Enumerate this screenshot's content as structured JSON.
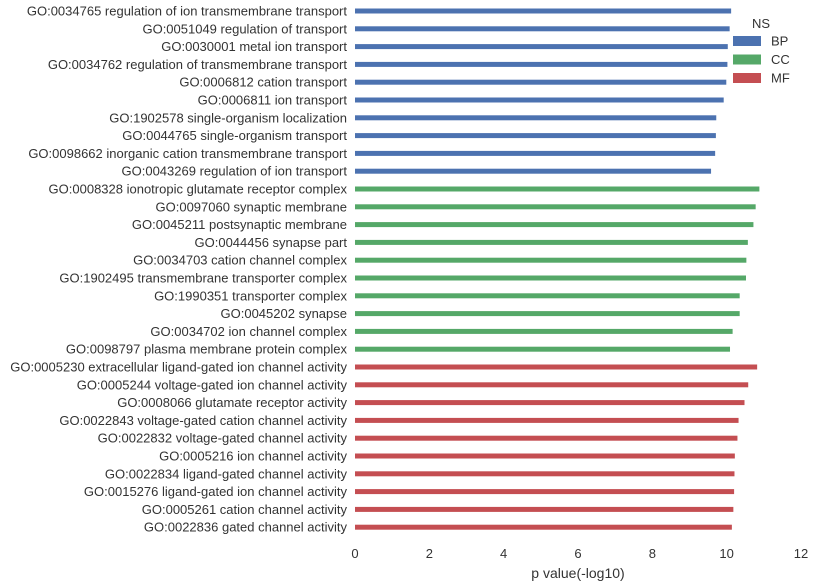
{
  "chart_data": {
    "type": "bar",
    "orientation": "horizontal",
    "xlabel": "p value(-log10)",
    "ylabel": "",
    "title": "",
    "xlim": [
      0,
      12
    ],
    "xticks": [
      0,
      2,
      4,
      6,
      8,
      10,
      12
    ],
    "grid": false,
    "legend": {
      "title": "NS",
      "placement": "top-right",
      "entries": [
        {
          "name": "BP",
          "color": "#4c72b0"
        },
        {
          "name": "CC",
          "color": "#55a868"
        },
        {
          "name": "MF",
          "color": "#c44e52"
        }
      ]
    },
    "categories": [
      "GO:0034765 regulation of ion transmembrane transport",
      "GO:0051049 regulation of transport",
      "GO:0030001 metal ion transport",
      "GO:0034762 regulation of transmembrane transport",
      "GO:0006812 cation transport",
      "GO:0006811 ion transport",
      "GO:1902578 single-organism localization",
      "GO:0044765 single-organism transport",
      "GO:0098662 inorganic cation transmembrane transport",
      "GO:0043269 regulation of ion transport",
      "GO:0008328 ionotropic glutamate receptor complex",
      "GO:0097060 synaptic membrane",
      "GO:0045211 postsynaptic membrane",
      "GO:0044456 synapse part",
      "GO:0034703 cation channel complex",
      "GO:1902495 transmembrane transporter complex",
      "GO:1990351 transporter complex",
      "GO:0045202 synapse",
      "GO:0034702 ion channel complex",
      "GO:0098797 plasma membrane protein complex",
      "GO:0005230 extracellular ligand-gated ion channel activity",
      "GO:0005244 voltage-gated ion channel activity",
      "GO:0008066 glutamate receptor activity",
      "GO:0022843 voltage-gated cation channel activity",
      "GO:0022832 voltage-gated channel activity",
      "GO:0005216 ion channel activity",
      "GO:0022834 ligand-gated channel activity",
      "GO:0015276 ligand-gated ion channel activity",
      "GO:0005261 cation channel activity",
      "GO:0022836 gated channel activity"
    ],
    "groups": [
      "BP",
      "BP",
      "BP",
      "BP",
      "BP",
      "BP",
      "BP",
      "BP",
      "BP",
      "BP",
      "CC",
      "CC",
      "CC",
      "CC",
      "CC",
      "CC",
      "CC",
      "CC",
      "CC",
      "CC",
      "MF",
      "MF",
      "MF",
      "MF",
      "MF",
      "MF",
      "MF",
      "MF",
      "MF",
      "MF"
    ],
    "values": [
      10.12,
      10.08,
      10.03,
      10.02,
      9.99,
      9.92,
      9.72,
      9.71,
      9.69,
      9.58,
      10.88,
      10.78,
      10.72,
      10.57,
      10.53,
      10.52,
      10.35,
      10.35,
      10.16,
      10.09,
      10.82,
      10.58,
      10.48,
      10.32,
      10.29,
      10.22,
      10.21,
      10.2,
      10.18,
      10.14
    ]
  }
}
